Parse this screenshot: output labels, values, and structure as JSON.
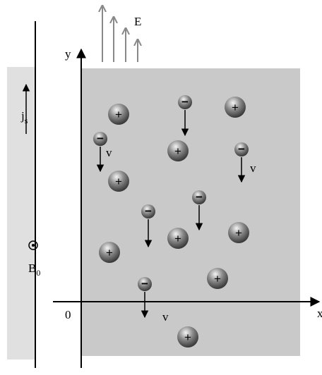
{
  "labels": {
    "field": "E",
    "y_axis": "y",
    "x_axis": "x",
    "origin": "0",
    "current": "j",
    "current_sub": "s",
    "field_b": "B",
    "field_b_sub": "0",
    "velocity": "v"
  },
  "signs": {
    "positive": "+",
    "negative": "−"
  }
}
